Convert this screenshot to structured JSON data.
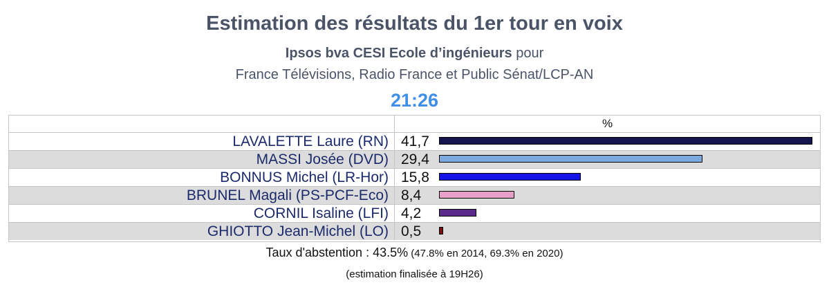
{
  "header": {
    "title": "Estimation des résultats du 1er tour en voix",
    "pollster": "Ipsos bva CESI Ecole d’ingénieurs",
    "pollster_suffix": " pour",
    "media": "France Télévisions, Radio France et Public Sénat/LCP-AN",
    "time": "21:26"
  },
  "chart_data": {
    "type": "bar",
    "orientation": "horizontal",
    "column_header": "%",
    "categories": [
      "LAVALETTE Laure (RN)",
      "MASSI Josée (DVD)",
      "BONNUS Michel (LR-Hor)",
      "BRUNEL Magali (PS-PCF-Eco)",
      "CORNIL Isaline (LFI)",
      "GHIOTTO Jean-Michel (LO)"
    ],
    "value_labels": [
      "41,7",
      "29,4",
      "15,8",
      "8,4",
      "4,2",
      "0,5"
    ],
    "values": [
      41.7,
      29.4,
      15.8,
      8.4,
      4.2,
      0.5
    ],
    "colors": [
      "#14144f",
      "#7aaadf",
      "#1414e6",
      "#e8a0c8",
      "#5a2a8a",
      "#7a1010"
    ]
  },
  "footer": {
    "abstention_label": "Taux d'abstention : 43.5%",
    "abstention_note": " (47.8% en 2014, 69.3% en 2020)",
    "estimation_note": "(estimation finalisée à 19H26)"
  }
}
